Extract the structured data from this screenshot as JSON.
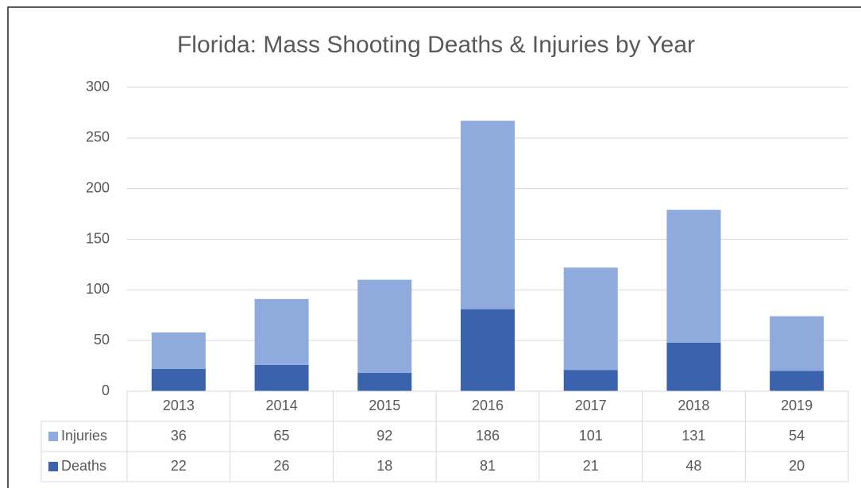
{
  "chart_data": {
    "type": "bar",
    "stacked": true,
    "title": "Florida: Mass Shooting Deaths & Injuries by Year",
    "categories": [
      "2013",
      "2014",
      "2015",
      "2016",
      "2017",
      "2018",
      "2019"
    ],
    "series": [
      {
        "name": "Injuries",
        "color": "#8faadc",
        "values": [
          36,
          65,
          92,
          186,
          101,
          131,
          54
        ]
      },
      {
        "name": "Deaths",
        "color": "#3a62ad",
        "values": [
          22,
          26,
          18,
          81,
          21,
          48,
          20
        ]
      }
    ],
    "ylim": [
      0,
      300
    ],
    "yticks": [
      0,
      50,
      100,
      150,
      200,
      250,
      300
    ],
    "grid": true
  }
}
